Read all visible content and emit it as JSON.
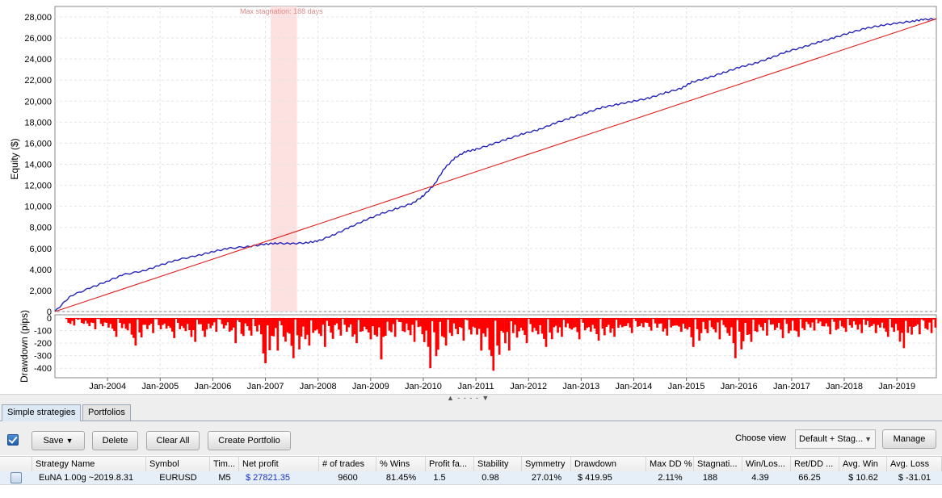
{
  "chart_data": [
    {
      "type": "line",
      "ylabel": "Equity ($)",
      "ylim": [
        0,
        28000
      ],
      "yticks": [
        "0",
        "2,000",
        "4,000",
        "6,000",
        "8,000",
        "10,000",
        "12,000",
        "14,000",
        "16,000",
        "18,000",
        "20,000",
        "22,000",
        "24,000",
        "26,000",
        "28,000"
      ],
      "annotation": "Max stagnation: 188 days",
      "stagnation_period": [
        "2007-02",
        "2007-08"
      ],
      "grid": true,
      "series": [
        {
          "color": "#2424b8",
          "x": [
            2003.0,
            2003.3,
            2003.7,
            2004.0,
            2004.3,
            2004.7,
            2005.0,
            2005.3,
            2005.7,
            2006.0,
            2006.3,
            2006.7,
            2007.0,
            2007.2,
            2007.5,
            2007.8,
            2008.0,
            2008.3,
            2008.6,
            2008.9,
            2009.2,
            2009.5,
            2009.8,
            2010.0,
            2010.2,
            2010.4,
            2010.6,
            2010.8,
            2011.0,
            2011.3,
            2011.6,
            2011.9,
            2012.2,
            2012.5,
            2012.8,
            2013.1,
            2013.4,
            2013.7,
            2014.0,
            2014.3,
            2014.6,
            2014.9,
            2015.1,
            2015.4,
            2015.7,
            2016.0,
            2016.3,
            2016.6,
            2016.9,
            2017.2,
            2017.5,
            2017.8,
            2018.1,
            2018.4,
            2018.7,
            2019.0,
            2019.3,
            2019.5,
            2019.75
          ],
          "y": [
            0,
            1500,
            2300,
            2900,
            3500,
            3900,
            4400,
            4900,
            5300,
            5700,
            6000,
            6200,
            6400,
            6500,
            6450,
            6550,
            6700,
            7300,
            8000,
            8700,
            9300,
            9800,
            10300,
            11000,
            12000,
            13600,
            14600,
            15200,
            15400,
            15900,
            16400,
            16900,
            17300,
            17900,
            18400,
            18900,
            19400,
            19700,
            20000,
            20300,
            20800,
            21200,
            21800,
            22200,
            22700,
            23200,
            23600,
            24100,
            24700,
            25100,
            25600,
            26000,
            26500,
            26900,
            27200,
            27400,
            27600,
            27750,
            27822
          ]
        },
        {
          "color": "#e02020",
          "x": [
            2003.0,
            2019.75
          ],
          "y": [
            0,
            27822
          ]
        }
      ]
    },
    {
      "type": "bar",
      "ylabel": "Drawdown (pips)",
      "ylim": [
        -450,
        0
      ],
      "yticks": [
        "0",
        "-100",
        "-200",
        "-300",
        "-400"
      ],
      "color": "#ff0000",
      "xticks": [
        "Jan-2004",
        "Jan-2005",
        "Jan-2006",
        "Jan-2007",
        "Jan-2008",
        "Jan-2009",
        "Jan-2010",
        "Jan-2011",
        "Jan-2012",
        "Jan-2013",
        "Jan-2014",
        "Jan-2015",
        "Jan-2016",
        "Jan-2017",
        "Jan-2018",
        "Jan-2019"
      ],
      "x": [
        2003.2,
        2003.6,
        2004.0,
        2004.4,
        2004.7,
        2005.1,
        2005.5,
        2005.9,
        2006.3,
        2006.6,
        2006.9,
        2007.1,
        2007.4,
        2007.7,
        2008.0,
        2008.3,
        2008.6,
        2008.9,
        2009.1,
        2009.3,
        2009.7,
        2010.0,
        2010.3,
        2010.6,
        2011.0,
        2011.2,
        2011.5,
        2011.8,
        2012.2,
        2012.5,
        2012.8,
        2013.2,
        2013.5,
        2013.8,
        2014.2,
        2014.5,
        2014.8,
        2015.0,
        2015.3,
        2015.5,
        2015.8,
        2016.1,
        2016.4,
        2016.7,
        2017.0,
        2017.3,
        2017.6,
        2017.9,
        2018.2,
        2018.5,
        2018.7,
        2019.0,
        2019.3,
        2019.6
      ],
      "values": [
        -60,
        -90,
        -150,
        -220,
        -120,
        -160,
        -190,
        -110,
        -200,
        -140,
        -360,
        -260,
        -320,
        -220,
        -230,
        -140,
        -200,
        -170,
        -330,
        -150,
        -190,
        -400,
        -220,
        -180,
        -260,
        -420,
        -260,
        -200,
        -230,
        -150,
        -170,
        -180,
        -150,
        -120,
        -100,
        -140,
        -110,
        -230,
        -120,
        -170,
        -320,
        -190,
        -140,
        -160,
        -150,
        -100,
        -130,
        -110,
        -120,
        -120,
        -150,
        -240,
        -130,
        -120
      ]
    }
  ],
  "splitter": {
    "label": "▲ - - - - ▼"
  },
  "tabs": [
    {
      "label": "Simple strategies",
      "active": true
    },
    {
      "label": "Portfolios",
      "active": false
    }
  ],
  "toolbar": {
    "save_label": "Save",
    "save_arrow": "▼",
    "delete_label": "Delete",
    "clear_all_label": "Clear All",
    "create_portfolio_label": "Create Portfolio",
    "choose_view_label": "Choose view",
    "view_value": "Default + Stag...",
    "view_arrow": "▼",
    "manage_label": "Manage"
  },
  "table": {
    "columns": [
      "Strategy Name",
      "Symbol",
      "Tim...",
      "Net profit",
      "# of trades",
      "% Wins",
      "Profit fa...",
      "Stability",
      "Symmetry",
      "Drawdown",
      "Max DD %",
      "Stagnati...",
      "Win/Los...",
      "Ret/DD ...",
      "Avg. Win",
      "Avg. Loss"
    ],
    "rows": [
      [
        "EuNA 1.00g ~2019.8.31",
        "EURUSD",
        "M5",
        "$ 27821.35",
        "9600",
        "81.45%",
        "1.5",
        "0.98",
        "27.01%",
        "$ 419.95",
        "2.11%",
        "188",
        "4.39",
        "66.25",
        "$ 10.62",
        "$ -31.01"
      ]
    ]
  }
}
